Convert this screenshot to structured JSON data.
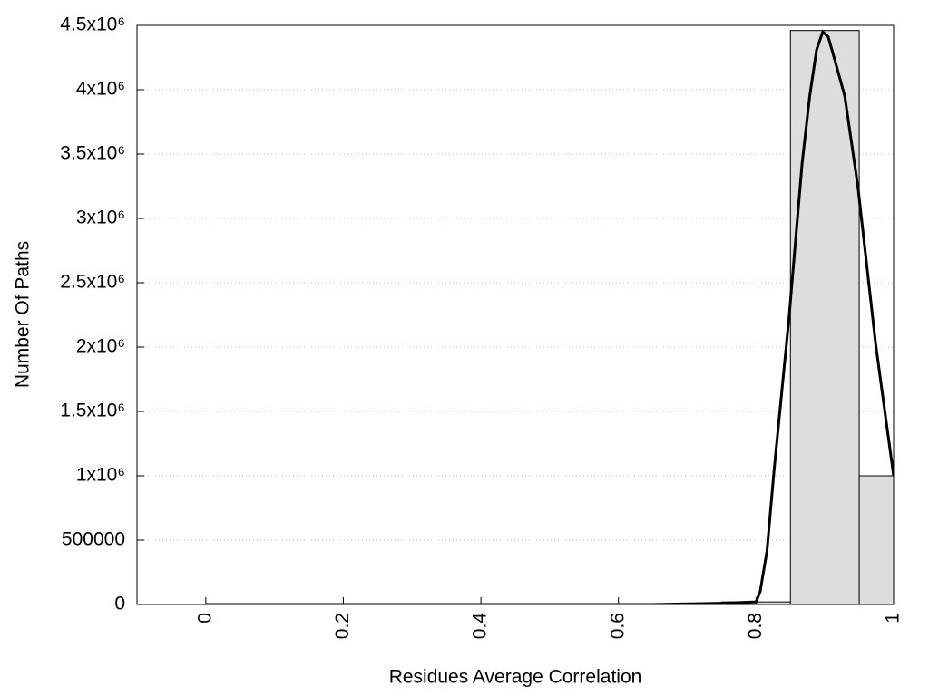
{
  "chart_data": {
    "type": "histogram",
    "x_label": "Residues Average Correlation",
    "y_label": "Number Of Paths",
    "bins": [
      0.75,
      0.85,
      0.95,
      1.05
    ],
    "values": [
      20000,
      4460000,
      1000000
    ],
    "color": "#dddddd",
    "line": {
      "type": "line",
      "color": "#000000",
      "x": [
        0,
        0.65,
        0.7,
        0.75,
        0.8,
        0.806,
        0.816,
        0.826,
        0.848,
        0.867,
        0.878,
        0.888,
        0.897,
        0.905,
        0.914,
        0.929,
        0.948,
        0.974,
        1
      ],
      "values": [
        0,
        0,
        5000,
        10000,
        20000,
        100000,
        420000,
        1030000,
        2230000,
        3430000,
        3950000,
        4310000,
        4450000,
        4410000,
        4240000,
        3950000,
        3250000,
        2020000,
        1000000
      ]
    },
    "xlim": [
      -0.1,
      1
    ],
    "ylim": [
      0,
      4500000
    ],
    "xticks": [
      0,
      0.2,
      0.4,
      0.6,
      0.8,
      1
    ],
    "yticks": [
      0,
      500000,
      {
        "value": 1000000,
        "label": "1x10⁶"
      },
      {
        "value": 1500000,
        "label": "1.5x10⁶"
      },
      {
        "value": 2000000,
        "label": "2x10⁶"
      },
      {
        "value": 2500000,
        "label": "2.5x10⁶"
      },
      {
        "value": 3000000,
        "label": "3x10⁶"
      },
      {
        "value": 3500000,
        "label": "3.5x10⁶"
      },
      {
        "value": 4000000,
        "label": "4x10⁶"
      },
      {
        "value": 4500000,
        "label": "4.5x10⁶"
      }
    ],
    "grid": true
  }
}
